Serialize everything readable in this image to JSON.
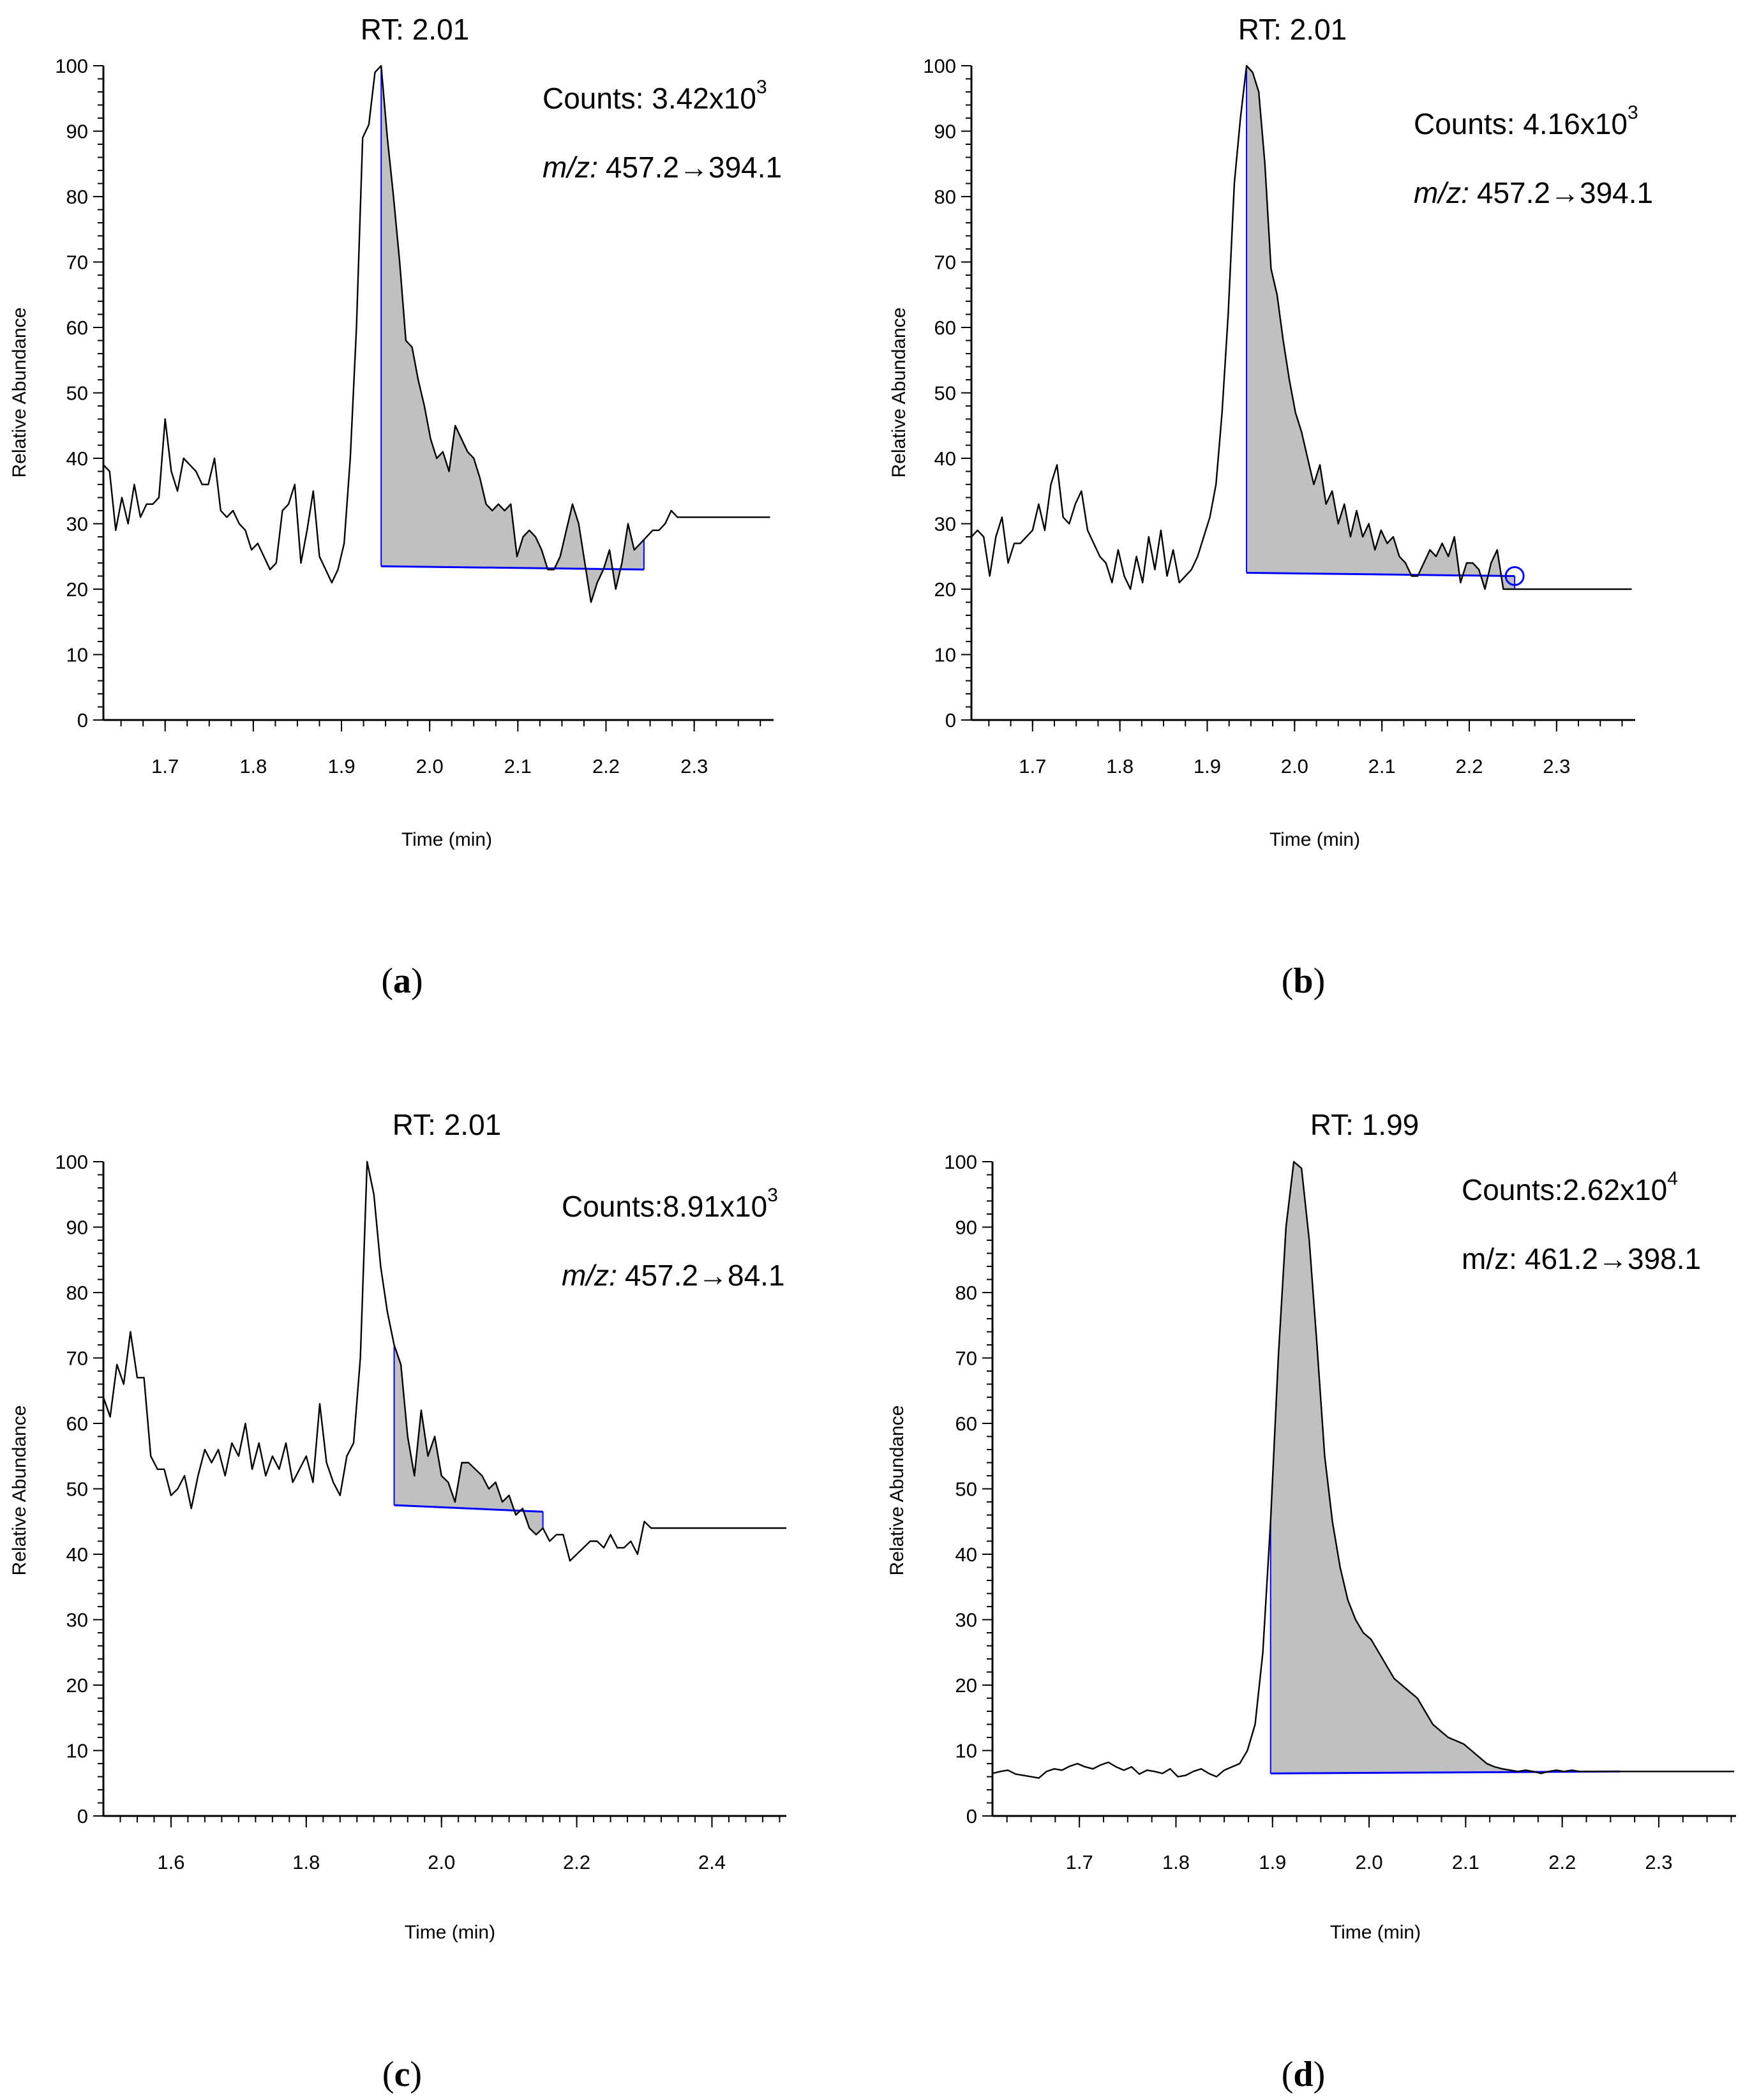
{
  "colors": {
    "trace": "#000000",
    "peak_fill": "#c0c0c0",
    "baseline": "#0000ff",
    "axis": "#000000",
    "background": "#ffffff"
  },
  "chart_data": [
    {
      "type": "area",
      "panel_label_letter": "a",
      "title": "RT: 2.01",
      "counts_label": "Counts: 3.42x10",
      "counts_exponent": "3",
      "mz_prefix": "m/z:",
      "mz_value": "457.2→394.1",
      "xlabel": "Time (min)",
      "ylabel": "Relative Abundance",
      "xlim": [
        1.63,
        2.39
      ],
      "ylim": [
        0,
        100
      ],
      "x_ticks": [
        "1.7",
        "1.8",
        "1.9",
        "2.0",
        "2.1",
        "2.2",
        "2.3"
      ],
      "x_tick_values": [
        1.7,
        1.8,
        1.9,
        2.0,
        2.1,
        2.2,
        2.3
      ],
      "y_ticks": [
        "0",
        "10",
        "20",
        "30",
        "40",
        "50",
        "60",
        "70",
        "80",
        "90",
        "100"
      ],
      "grid": false,
      "series": [
        {
          "x": [
            1.63,
            1.637,
            1.644,
            1.651,
            1.658,
            1.665,
            1.672,
            1.679,
            1.686,
            1.693,
            1.7,
            1.707,
            1.714,
            1.721,
            1.728,
            1.735,
            1.742,
            1.749,
            1.756,
            1.763,
            1.77,
            1.777,
            1.784,
            1.791,
            1.798,
            1.805,
            1.812,
            1.819,
            1.826,
            1.833,
            1.84,
            1.847,
            1.854,
            1.861,
            1.868,
            1.875,
            1.882,
            1.889,
            1.896,
            1.903,
            1.91,
            1.917,
            1.924,
            1.931,
            1.938,
            1.945,
            1.952,
            1.959,
            1.966,
            1.973,
            1.98,
            1.987,
            1.994,
            2.001,
            2.008,
            2.015,
            2.022,
            2.029,
            2.036,
            2.043,
            2.05,
            2.057,
            2.064,
            2.071,
            2.078,
            2.085,
            2.092,
            2.099,
            2.106,
            2.113,
            2.12,
            2.127,
            2.134,
            2.141,
            2.148,
            2.155,
            2.162,
            2.169,
            2.176,
            2.183,
            2.19,
            2.197,
            2.204,
            2.211,
            2.218,
            2.225,
            2.232,
            2.239,
            2.246,
            2.253,
            2.26,
            2.267,
            2.274,
            2.281,
            2.288,
            2.295,
            2.302,
            2.309,
            2.316,
            2.323,
            2.33,
            2.337,
            2.344,
            2.351,
            2.358,
            2.365,
            2.372,
            2.379,
            2.386
          ],
          "y": [
            39,
            38,
            29,
            34,
            30,
            36,
            31,
            33,
            33,
            34,
            46,
            38,
            35,
            40,
            39,
            38,
            36,
            36,
            40,
            32,
            31,
            32,
            30,
            29,
            26,
            27,
            25,
            23,
            24,
            32,
            33,
            36,
            24,
            29,
            35,
            25,
            23,
            21,
            23,
            27,
            40,
            60,
            89,
            91,
            99,
            100,
            89,
            80,
            70,
            58,
            57,
            52,
            48,
            43,
            40,
            41,
            38,
            45,
            43,
            41,
            40,
            37,
            33,
            32,
            33,
            32,
            33,
            25,
            28,
            29,
            28,
            26,
            23,
            23,
            25,
            29,
            33,
            30,
            24,
            18,
            21,
            23,
            26,
            20,
            24,
            30,
            26,
            27,
            28,
            29,
            29,
            30,
            32,
            31,
            31,
            31,
            31,
            31,
            31,
            31,
            31,
            31,
            31,
            31,
            31,
            31,
            31,
            31,
            31
          ]
        }
      ],
      "peak": {
        "x_start": 1.945,
        "x_end": 2.243,
        "baseline_start": 23.5,
        "baseline_end": 23.0
      }
    },
    {
      "type": "area",
      "panel_label_letter": "b",
      "title": "RT: 2.01",
      "counts_label": "Counts: 4.16x10",
      "counts_exponent": "3",
      "mz_prefix": "m/z:",
      "mz_value": "457.2→394.1",
      "xlabel": "Time (min)",
      "ylabel": "Relative Abundance",
      "xlim": [
        1.63,
        2.39
      ],
      "ylim": [
        0,
        100
      ],
      "x_ticks": [
        "1.7",
        "1.8",
        "1.9",
        "2.0",
        "2.1",
        "2.2",
        "2.3"
      ],
      "x_tick_values": [
        1.7,
        1.8,
        1.9,
        2.0,
        2.1,
        2.2,
        2.3
      ],
      "y_ticks": [
        "0",
        "10",
        "20",
        "30",
        "40",
        "50",
        "60",
        "70",
        "80",
        "90",
        "100"
      ],
      "grid": false,
      "series": [
        {
          "x": [
            1.63,
            1.637,
            1.644,
            1.651,
            1.658,
            1.665,
            1.672,
            1.679,
            1.686,
            1.693,
            1.7,
            1.707,
            1.714,
            1.721,
            1.728,
            1.735,
            1.742,
            1.749,
            1.756,
            1.763,
            1.77,
            1.777,
            1.784,
            1.791,
            1.798,
            1.805,
            1.812,
            1.819,
            1.826,
            1.833,
            1.84,
            1.847,
            1.854,
            1.861,
            1.868,
            1.875,
            1.882,
            1.889,
            1.896,
            1.903,
            1.91,
            1.917,
            1.924,
            1.931,
            1.938,
            1.945,
            1.952,
            1.959,
            1.966,
            1.973,
            1.98,
            1.987,
            1.994,
            2.001,
            2.008,
            2.015,
            2.022,
            2.029,
            2.036,
            2.043,
            2.05,
            2.057,
            2.064,
            2.071,
            2.078,
            2.085,
            2.092,
            2.099,
            2.106,
            2.113,
            2.12,
            2.127,
            2.134,
            2.141,
            2.148,
            2.155,
            2.162,
            2.169,
            2.176,
            2.183,
            2.19,
            2.197,
            2.204,
            2.211,
            2.218,
            2.225,
            2.232,
            2.239,
            2.246,
            2.253,
            2.26,
            2.267,
            2.274,
            2.281,
            2.288,
            2.295,
            2.302,
            2.309,
            2.316,
            2.323,
            2.33,
            2.337,
            2.344,
            2.351,
            2.358,
            2.365,
            2.372,
            2.379,
            2.386
          ],
          "y": [
            28,
            29,
            28,
            22,
            28,
            31,
            24,
            27,
            27,
            28,
            29,
            33,
            29,
            36,
            39,
            31,
            30,
            33,
            35,
            29,
            27,
            25,
            24,
            21,
            26,
            22,
            20,
            25,
            21,
            28,
            23,
            29,
            22,
            26,
            21,
            22,
            23,
            25,
            28,
            31,
            36,
            47,
            62,
            82,
            92,
            100,
            99,
            96,
            85,
            69,
            65,
            58,
            52,
            47,
            44,
            40,
            36,
            39,
            33,
            35,
            30,
            33,
            28,
            32,
            28,
            30,
            26,
            29,
            27,
            28,
            25,
            24,
            22,
            22,
            24,
            26,
            25,
            27,
            25,
            28,
            21,
            24,
            24,
            23,
            20,
            24,
            26,
            20,
            20,
            20,
            20,
            20,
            20,
            20,
            20,
            20,
            20,
            20,
            20,
            20,
            20,
            20,
            20,
            20,
            20,
            20,
            20,
            20,
            20
          ],
          "x_end_data": 2.39
        }
      ],
      "peak": {
        "x_start": 1.945,
        "x_end": 2.252,
        "baseline_start": 22.5,
        "baseline_end": 22.0
      }
    },
    {
      "type": "area",
      "panel_label_letter": "c",
      "title": "RT: 2.01",
      "counts_label": "Counts:8.91x10",
      "counts_exponent": "3",
      "mz_prefix": "m/z:",
      "mz_value": "457.2→84.1",
      "xlabel": "Time (min)",
      "ylabel": "Relative Abundance",
      "xlim": [
        1.5,
        2.51
      ],
      "ylim": [
        0,
        100
      ],
      "x_ticks": [
        "1.6",
        "1.8",
        "2.0",
        "2.2",
        "2.4"
      ],
      "x_tick_values": [
        1.6,
        1.8,
        2.0,
        2.2,
        2.4
      ],
      "y_ticks": [
        "0",
        "10",
        "20",
        "30",
        "40",
        "50",
        "60",
        "70",
        "80",
        "90",
        "100"
      ],
      "grid": false,
      "series": [
        {
          "x": [
            1.5,
            1.51,
            1.52,
            1.53,
            1.54,
            1.55,
            1.56,
            1.57,
            1.58,
            1.59,
            1.6,
            1.61,
            1.62,
            1.63,
            1.64,
            1.65,
            1.66,
            1.67,
            1.68,
            1.69,
            1.7,
            1.71,
            1.72,
            1.73,
            1.74,
            1.75,
            1.76,
            1.77,
            1.78,
            1.79,
            1.8,
            1.81,
            1.82,
            1.83,
            1.84,
            1.85,
            1.86,
            1.87,
            1.88,
            1.89,
            1.9,
            1.91,
            1.92,
            1.93,
            1.94,
            1.95,
            1.96,
            1.97,
            1.98,
            1.99,
            2.0,
            2.01,
            2.02,
            2.03,
            2.04,
            2.05,
            2.06,
            2.07,
            2.08,
            2.09,
            2.1,
            2.11,
            2.12,
            2.13,
            2.14,
            2.15,
            2.16,
            2.17,
            2.18,
            2.19,
            2.2,
            2.21,
            2.22,
            2.23,
            2.24,
            2.25,
            2.26,
            2.27,
            2.28,
            2.29,
            2.3,
            2.31,
            2.32,
            2.33,
            2.34,
            2.35,
            2.36,
            2.37,
            2.38,
            2.39,
            2.4,
            2.41,
            2.42,
            2.43,
            2.44,
            2.45,
            2.46,
            2.47,
            2.48,
            2.49,
            2.5,
            2.51
          ],
          "y": [
            64,
            61,
            69,
            66,
            74,
            67,
            67,
            55,
            53,
            53,
            49,
            50,
            52,
            47,
            52,
            56,
            54,
            56,
            52,
            57,
            55,
            60,
            53,
            57,
            52,
            55,
            53,
            57,
            51,
            53,
            55,
            51,
            63,
            54,
            51,
            49,
            55,
            57,
            70,
            100,
            95,
            84,
            77,
            72,
            69,
            58,
            52,
            62,
            55,
            58,
            52,
            51,
            48,
            54,
            54,
            53,
            52,
            50,
            51,
            48,
            49,
            46,
            47,
            44,
            43,
            44,
            42,
            43,
            43,
            39,
            40,
            41,
            42,
            42,
            41,
            43,
            41,
            41,
            42,
            40,
            45,
            44,
            44,
            44,
            44,
            44,
            44,
            44,
            44,
            44,
            44,
            44,
            44,
            44,
            44,
            44,
            44,
            44,
            44,
            44,
            44,
            44
          ]
        }
      ],
      "peak": {
        "x_start": 1.93,
        "x_end": 2.15,
        "baseline_start": 47.5,
        "baseline_end": 46.5
      }
    },
    {
      "type": "area",
      "panel_label_letter": "d",
      "title": "RT: 1.99",
      "counts_label": "Counts:2.62x10",
      "counts_exponent": "4",
      "mz_prefix": "m/z:",
      "mz_value": "461.2→398.1",
      "xlabel": "Time (min)",
      "ylabel": "Relative Abundance",
      "xlim": [
        1.61,
        2.38
      ],
      "ylim": [
        0,
        100
      ],
      "x_ticks": [
        "1.7",
        "1.8",
        "1.9",
        "2.0",
        "2.1",
        "2.2",
        "2.3"
      ],
      "x_tick_values": [
        1.7,
        1.8,
        1.9,
        2.0,
        2.1,
        2.2,
        2.3
      ],
      "y_ticks": [
        "0",
        "10",
        "20",
        "30",
        "40",
        "50",
        "60",
        "70",
        "80",
        "90",
        "100"
      ],
      "grid": false,
      "series": [
        {
          "x": [
            1.61,
            1.618,
            1.626,
            1.634,
            1.642,
            1.65,
            1.658,
            1.666,
            1.674,
            1.682,
            1.69,
            1.698,
            1.706,
            1.714,
            1.722,
            1.73,
            1.738,
            1.746,
            1.754,
            1.762,
            1.77,
            1.778,
            1.786,
            1.794,
            1.802,
            1.81,
            1.818,
            1.826,
            1.834,
            1.842,
            1.85,
            1.858,
            1.866,
            1.874,
            1.882,
            1.89,
            1.898,
            1.906,
            1.914,
            1.922,
            1.93,
            1.938,
            1.946,
            1.954,
            1.962,
            1.97,
            1.978,
            1.986,
            1.994,
            2.002,
            2.01,
            2.018,
            2.026,
            2.034,
            2.042,
            2.05,
            2.058,
            2.066,
            2.074,
            2.082,
            2.09,
            2.098,
            2.106,
            2.114,
            2.122,
            2.13,
            2.138,
            2.146,
            2.154,
            2.162,
            2.17,
            2.178,
            2.186,
            2.194,
            2.202,
            2.21,
            2.218,
            2.226,
            2.234,
            2.242,
            2.25,
            2.258,
            2.266,
            2.274,
            2.282,
            2.29,
            2.298,
            2.306,
            2.314,
            2.322,
            2.33,
            2.338,
            2.346,
            2.354,
            2.362,
            2.37,
            2.378
          ],
          "y": [
            6.5,
            6.8,
            7,
            6.4,
            6.2,
            6,
            5.8,
            6.8,
            7.2,
            7,
            7.6,
            8,
            7.5,
            7.2,
            7.8,
            8.2,
            7.5,
            7,
            7.5,
            6.4,
            7,
            6.8,
            6.5,
            7.2,
            6,
            6.2,
            6.8,
            7.2,
            6.5,
            6,
            7,
            7.5,
            8,
            10,
            14,
            25,
            45,
            70,
            90,
            100,
            99,
            88,
            72,
            55,
            45,
            38,
            33,
            30,
            28,
            27,
            25,
            23,
            21,
            20,
            19,
            18,
            16,
            14,
            13,
            12,
            11.5,
            11,
            10,
            9,
            8,
            7.5,
            7.2,
            7,
            6.8,
            7,
            6.8,
            6.5,
            6.8,
            7,
            6.8,
            7,
            6.8,
            6.8,
            6.8,
            6.8,
            6.8,
            6.8,
            6.8,
            6.8,
            6.8,
            6.8,
            6.8,
            6.8,
            6.8,
            6.8,
            6.8,
            6.8,
            6.8,
            6.8,
            6.8,
            6.8,
            6.8
          ]
        }
      ],
      "peak": {
        "x_start": 1.898,
        "x_end": 2.26,
        "baseline_start": 6.5,
        "baseline_end": 6.8
      }
    }
  ]
}
